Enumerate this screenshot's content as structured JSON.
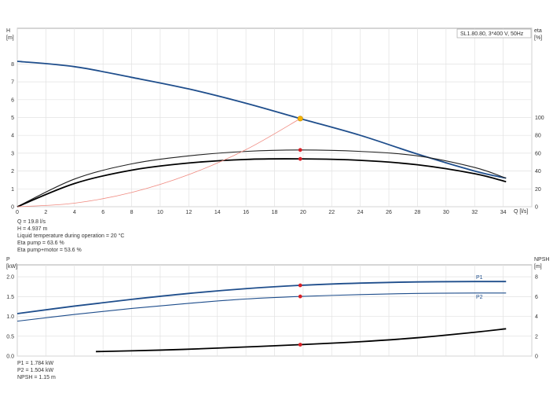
{
  "chart_data": [
    {
      "type": "line",
      "model_label": "SL1.80.80, 3*400 V, 50Hz",
      "ylabel_left": [
        "H",
        "[m]"
      ],
      "ylabel_right": [
        "eta",
        "[%]"
      ],
      "xlabel": "Q [l/s]",
      "xlim": [
        0,
        36
      ],
      "ylim": [
        0,
        10
      ],
      "ylim_right": [
        0,
        200
      ],
      "x_ticks": [
        "0",
        "2",
        "4",
        "6",
        "8",
        "10",
        "12",
        "14",
        "16",
        "18",
        "20",
        "22",
        "24",
        "26",
        "28",
        "30",
        "32",
        "34"
      ],
      "y_ticks": [
        "0",
        "1",
        "2",
        "3",
        "4",
        "5",
        "6",
        "7",
        "8"
      ],
      "y_ticks_right": [
        "0",
        "20",
        "40",
        "60",
        "80",
        "100"
      ],
      "grid": true,
      "series": [
        {
          "key": "H",
          "color": "#1f4e8c",
          "axis": "left",
          "x": [
            0,
            4,
            8,
            12,
            16,
            19.8,
            24,
            28,
            32,
            34.2
          ],
          "y": [
            8.15,
            7.85,
            7.25,
            6.6,
            5.8,
            4.94,
            4.0,
            2.95,
            2.0,
            1.6
          ]
        },
        {
          "key": "eta_pump",
          "color": "#222222",
          "axis": "right",
          "x": [
            0,
            4,
            8,
            12,
            16,
            19.8,
            24,
            28,
            32,
            34.2
          ],
          "y": [
            0,
            31,
            48,
            57,
            62,
            63.6,
            62,
            57,
            44,
            32
          ]
        },
        {
          "key": "eta_pump_motor",
          "color": "#000000",
          "axis": "right",
          "x": [
            0,
            4,
            8,
            12,
            16,
            19.8,
            24,
            28,
            32,
            34.2
          ],
          "y": [
            0,
            26,
            41,
            49,
            53,
            53.6,
            52,
            47,
            37,
            28
          ]
        },
        {
          "key": "system",
          "color": "#f08a80",
          "axis": "left",
          "x": [
            0,
            4,
            8,
            12,
            16,
            19.8
          ],
          "y": [
            0,
            0.2,
            0.8,
            1.8,
            3.2,
            4.94
          ]
        }
      ],
      "points": [
        {
          "x": 19.8,
          "y": 4.94,
          "axis": "left",
          "color": "#f4b400"
        },
        {
          "x": 19.8,
          "y": 63.6,
          "axis": "right",
          "color": "#d81f26"
        },
        {
          "x": 19.8,
          "y": 53.6,
          "axis": "right",
          "color": "#d81f26"
        }
      ],
      "info": [
        "Q = 19.8 l/s",
        "H = 4.937 m",
        "Liquid temperature during operation = 20 °C",
        "Eta pump = 63.6 %",
        "Eta pump+motor = 53.6 %"
      ]
    },
    {
      "type": "line",
      "ylabel_left": [
        "P",
        "[kW]"
      ],
      "ylabel_right": [
        "NPSH",
        "[m]"
      ],
      "xlim": [
        0,
        36
      ],
      "ylim": [
        0,
        2.3
      ],
      "ylim_right": [
        0,
        9.2
      ],
      "y_ticks": [
        "0.0",
        "0.5",
        "1.0",
        "1.5",
        "2.0"
      ],
      "y_ticks_right": [
        "0",
        "2",
        "4",
        "6",
        "8"
      ],
      "grid": true,
      "series": [
        {
          "key": "P1",
          "name": "P1",
          "color": "#1f4e8c",
          "axis": "left",
          "x": [
            0,
            4,
            8,
            12,
            16,
            19.8,
            24,
            28,
            32,
            34.2
          ],
          "y": [
            1.07,
            1.26,
            1.43,
            1.58,
            1.7,
            1.784,
            1.84,
            1.87,
            1.88,
            1.88
          ]
        },
        {
          "key": "P2",
          "name": "P2",
          "color": "#1f4e8c",
          "axis": "left",
          "x": [
            0,
            4,
            8,
            12,
            16,
            19.8,
            24,
            28,
            32,
            34.2
          ],
          "y": [
            0.88,
            1.05,
            1.2,
            1.33,
            1.44,
            1.504,
            1.55,
            1.58,
            1.59,
            1.59
          ]
        },
        {
          "key": "NPSH",
          "color": "#000000",
          "axis": "right",
          "x": [
            5.5,
            10,
            14,
            19.8,
            24,
            28,
            32,
            34.2
          ],
          "y": [
            0.45,
            0.6,
            0.8,
            1.15,
            1.45,
            1.85,
            2.4,
            2.75
          ]
        }
      ],
      "points": [
        {
          "x": 19.8,
          "y": 1.784,
          "axis": "left",
          "color": "#d81f26"
        },
        {
          "x": 19.8,
          "y": 1.504,
          "axis": "left",
          "color": "#d81f26"
        },
        {
          "x": 19.8,
          "y": 1.15,
          "axis": "right",
          "color": "#d81f26"
        }
      ],
      "info": [
        "P1 = 1.784 kW",
        "P2 = 1.504 kW",
        "NPSH = 1.15 m"
      ]
    }
  ]
}
